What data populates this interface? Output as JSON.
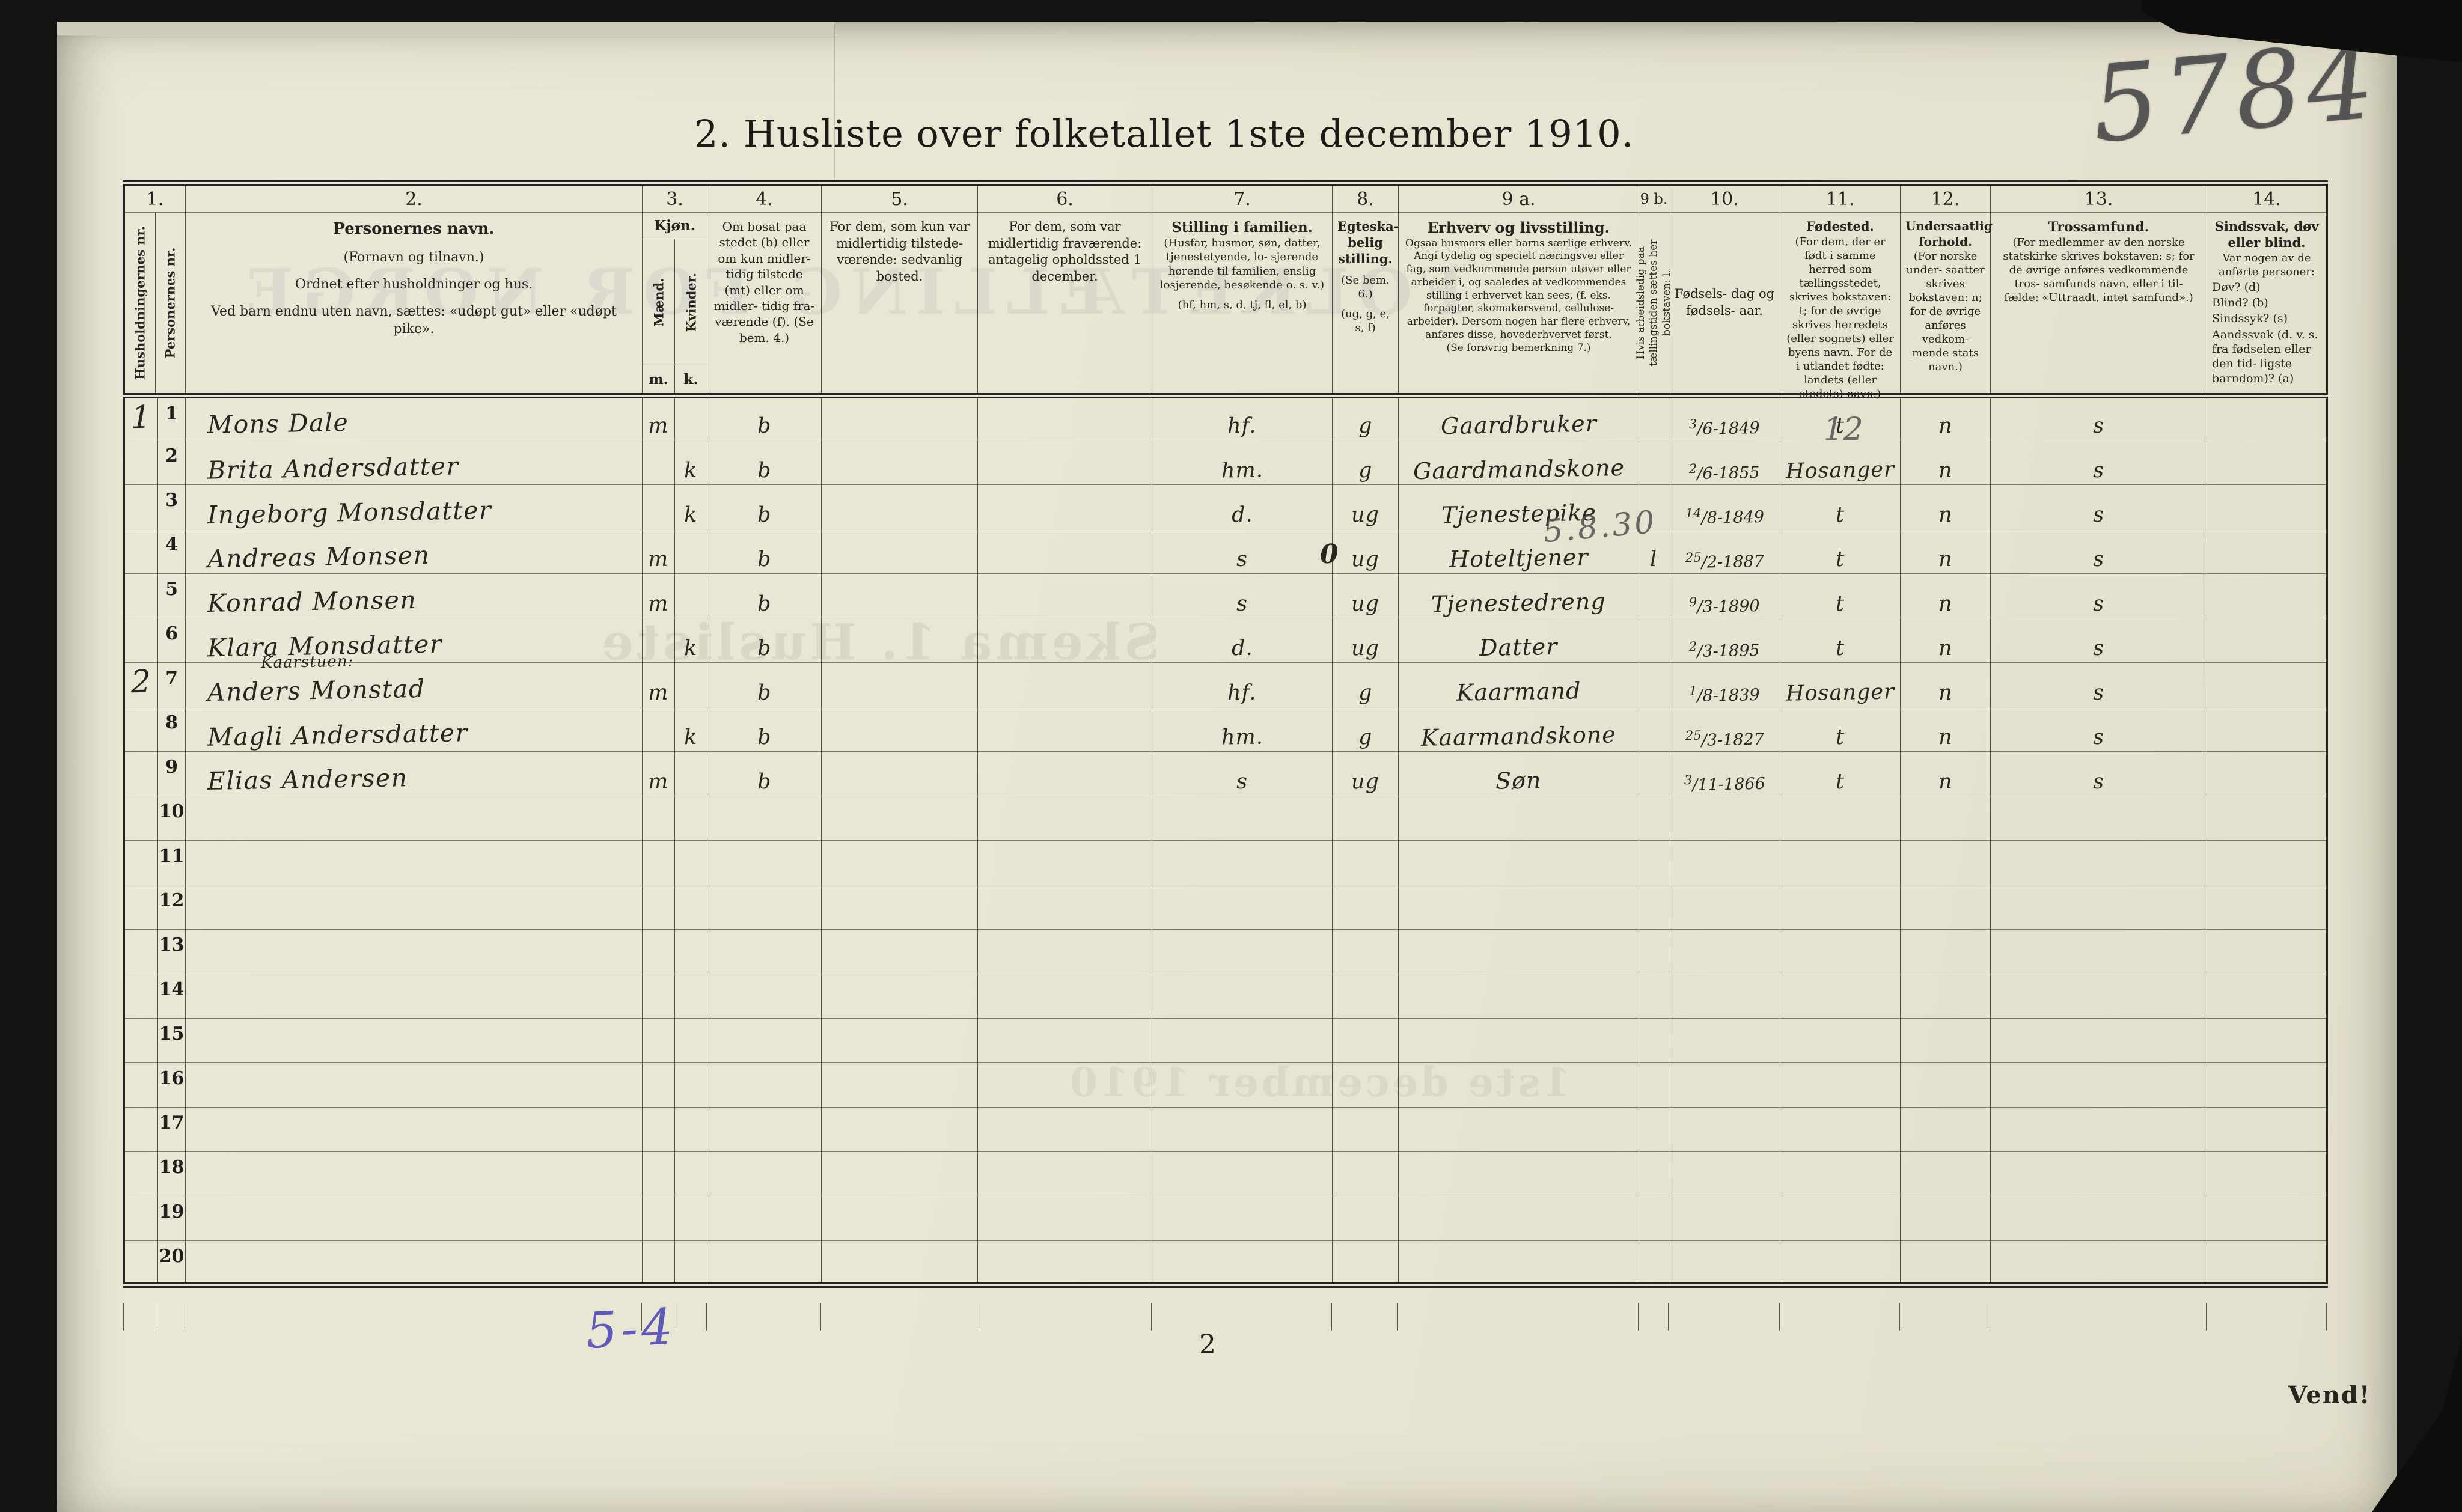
{
  "page": {
    "title": "2.  Husliste over folketallet 1ste december 1910.",
    "serial_pencil": "5784",
    "page_number": "2",
    "turn_note": "Vend!",
    "bottom_note_blue": "5-4"
  },
  "header": {
    "c1": {
      "num": "1.",
      "husholdning": "Husholdningernes nr.",
      "person": "Personernes nr."
    },
    "c2": {
      "num": "2.",
      "title": "Personernes navn.",
      "line2": "(Fornavn og tilnavn.)",
      "line3": "Ordnet efter husholdninger og hus.",
      "line4": "Ved barn endnu uten navn, sættes: «udøpt gut» eller «udøpt pike»."
    },
    "c3": {
      "num": "3.",
      "title": "Kjøn.",
      "male": "Mænd.",
      "female": "Kvinder.",
      "m": "m.",
      "k": "k."
    },
    "c4": {
      "num": "4.",
      "text": "Om bosat paa stedet (b) eller om kun midler- tidig tilstede (mt) eller om midler- tidig fra- værende (f). (Se bem. 4.)"
    },
    "c5": {
      "num": "5.",
      "text": "For dem, som kun var midlertidig tilstede- værende: sedvanlig bosted."
    },
    "c6": {
      "num": "6.",
      "text": "For dem, som var midlertidig fraværende: antagelig opholdssted 1 december."
    },
    "c7": {
      "num": "7.",
      "title": "Stilling i familien.",
      "line2": "(Husfar, husmor, søn, datter, tjenestetyende, lo- sjerende hørende til familien, enslig losjerende, besøkende o. s. v.)",
      "line3": "(hf, hm, s, d, tj, fl, el, b)"
    },
    "c8": {
      "num": "8.",
      "title": "Egteska- belig stilling.",
      "line2": "(Se bem. 6.)",
      "line3": "(ug, g, e, s, f)"
    },
    "c9a": {
      "num": "9 a.",
      "title": "Erhverv og livsstilling.",
      "line2": "Ogsaa husmors eller barns særlige erhverv.",
      "line3": "Angi tydelig og specielt næringsvei eller fag, som vedkommende person utøver eller arbeider i, og saaledes at vedkommendes stilling i erhvervet kan sees, (f. eks. forpagter, skomakersvend, cellulose- arbeider). Dersom nogen har flere erhverv, anføres disse, hovederhvervet først.",
      "line4": "(Se forøvrig bemerkning 7.)"
    },
    "c9b": {
      "num": "9 b.",
      "text": "Hvis arbeidsledig paa tællingstiden sættes her bokstaven: l."
    },
    "c10": {
      "num": "10.",
      "text": "Fødsels- dag og fødsels- aar."
    },
    "c11": {
      "num": "11.",
      "title": "Fødested.",
      "text": "(For dem, der er født i samme herred som tællingsstedet, skrives bokstaven: t; for de øvrige skrives herredets (eller sognets) eller byens navn. For de i utlandet fødte: landets (eller stedets) navn.)"
    },
    "c12": {
      "num": "12.",
      "title": "Undersaatlig forhold.",
      "text": "(For norske under- saatter skrives bokstaven: n; for de øvrige anføres vedkom- mende stats navn.)"
    },
    "c13": {
      "num": "13.",
      "title": "Trossamfund.",
      "text": "(For medlemmer av den norske statskirke skrives bokstaven: s; for de øvrige anføres vedkommende tros- samfunds navn, eller i til- fælde: «Uttraadt, intet samfund».)"
    },
    "c14": {
      "num": "14.",
      "title": "Sindssvak, døv eller blind.",
      "line2": "Var nogen av de anførte personer:",
      "items": [
        "Døv? (d)",
        "Blind? (b)",
        "Sindssyk? (s)",
        "Aandssvak (d. v. s. fra fødselen eller den tid- ligste barndom)? (a)"
      ]
    }
  },
  "rows": [
    {
      "nr": "1",
      "husholdning": "1",
      "navn": "Mons Dale",
      "kjonn": "m",
      "bosat": "b",
      "stilling": "hf.",
      "egteskab": "g",
      "erhverv": "Gaardbruker",
      "fodt": "3/6-1849",
      "fodested": "t",
      "undersaat": "n",
      "tros": "s"
    },
    {
      "nr": "2",
      "navn": "Brita Andersdatter",
      "kjonn": "k",
      "bosat": "b",
      "stilling": "hm.",
      "egteskab": "g",
      "erhverv": "Gaardmandskone",
      "fodt": "2/6-1855",
      "fodested": "Hosanger",
      "fodested_pencil": "12",
      "undersaat": "n",
      "tros": "s"
    },
    {
      "nr": "3",
      "navn": "Ingeborg Monsdatter",
      "kjonn": "k",
      "bosat": "b",
      "stilling": "d.",
      "egteskab": "ug",
      "erhverv": "Tjenestepike",
      "fodt": "14/8-1849",
      "fodested": "t",
      "undersaat": "n",
      "tros": "s"
    },
    {
      "nr": "4",
      "navn": "Andreas Monsen",
      "kjonn": "m",
      "bosat": "b",
      "stilling": "s",
      "stilling_mark": "0",
      "egteskab": "ug",
      "erhverv": "Hoteltjener",
      "erhverv_pencil": "5.8.30",
      "arbeidsledig": "l",
      "fodt": "25/2-1887",
      "fodested": "t",
      "undersaat": "n",
      "tros": "s"
    },
    {
      "nr": "5",
      "navn": "Konrad Monsen",
      "kjonn": "m",
      "bosat": "b",
      "stilling": "s",
      "egteskab": "ug",
      "erhverv": "Tjenestedreng",
      "fodt": "9/3-1890",
      "fodested": "t",
      "undersaat": "n",
      "tros": "s"
    },
    {
      "nr": "6",
      "navn": "Klara Monsdatter",
      "kjonn": "k",
      "bosat": "b",
      "stilling": "d.",
      "egteskab": "ug",
      "erhverv": "Datter",
      "fodt": "2/3-1895",
      "fodested": "t",
      "undersaat": "n",
      "tros": "s"
    },
    {
      "nr": "7",
      "husholdning": "2",
      "navn_over": "Kaarstuen:",
      "navn": "Anders Monstad",
      "kjonn": "m",
      "bosat": "b",
      "stilling": "hf.",
      "egteskab": "g",
      "erhverv": "Kaarmand",
      "fodt": "1/8-1839",
      "fodested": "Hosanger",
      "undersaat": "n",
      "tros": "s"
    },
    {
      "nr": "8",
      "navn": "Magli Andersdatter",
      "kjonn": "k",
      "bosat": "b",
      "stilling": "hm.",
      "egteskab": "g",
      "erhverv": "Kaarmandskone",
      "fodt": "25/3-1827",
      "fodested": "t",
      "undersaat": "n",
      "tros": "s"
    },
    {
      "nr": "9",
      "navn": "Elias Andersen",
      "kjonn": "m",
      "bosat": "b",
      "stilling": "s",
      "egteskab": "ug",
      "erhverv": "Søn",
      "fodt": "3/11-1866",
      "fodested": "t",
      "undersaat": "n",
      "tros": "s"
    },
    {
      "nr": "10"
    },
    {
      "nr": "11"
    },
    {
      "nr": "12"
    },
    {
      "nr": "13"
    },
    {
      "nr": "14"
    },
    {
      "nr": "15"
    },
    {
      "nr": "16"
    },
    {
      "nr": "17"
    },
    {
      "nr": "18"
    },
    {
      "nr": "19"
    },
    {
      "nr": "20"
    }
  ],
  "bleedthrough": [
    "FOLKETÆLLING FOR NORGE",
    "Skema 1. Husliste",
    "1ste december 1910"
  ]
}
